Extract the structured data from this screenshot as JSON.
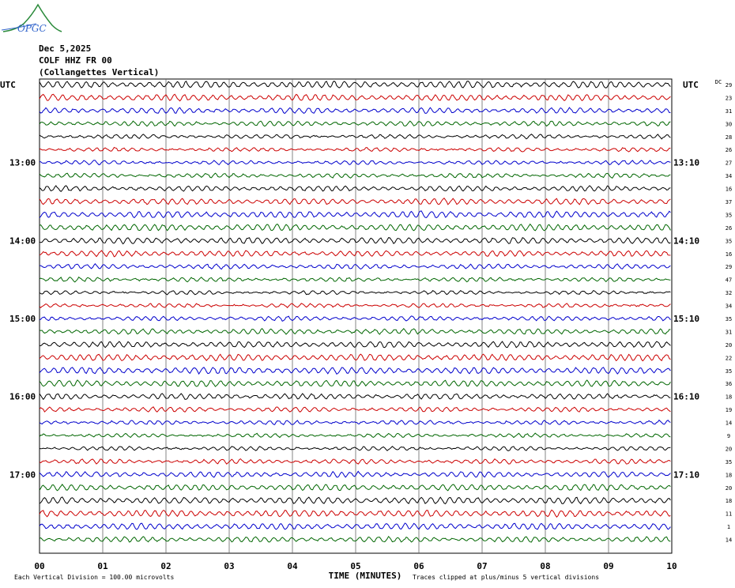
{
  "logo_text": "OPGC",
  "header": {
    "date": "Dec 5,2025",
    "station": "COLF HHZ FR 00",
    "description": "(Collangettes Vertical)"
  },
  "left_axis_label": "UTC",
  "right_axis_label": "UTC",
  "dc_label": "DC",
  "colors": {
    "black": "#000000",
    "red": "#cc0000",
    "blue": "#0000cc",
    "green": "#006600",
    "grid": "#666666"
  },
  "chart_data": {
    "type": "line",
    "title": "Dec 5,2025 COLF HHZ FR 00 (Collangettes Vertical)",
    "xlabel": "TIME (MINUTES)",
    "x_ticks": [
      "00",
      "01",
      "02",
      "03",
      "04",
      "05",
      "06",
      "07",
      "08",
      "09",
      "10"
    ],
    "xlim": [
      0,
      10
    ],
    "left_hour_labels": [
      "13:00",
      "14:00",
      "15:00",
      "16:00",
      "17:00"
    ],
    "right_hour_labels": [
      "13:10",
      "14:10",
      "15:10",
      "16:10",
      "17:10"
    ],
    "trace_count": 36,
    "trace_color_cycle": [
      "black",
      "red",
      "blue",
      "green"
    ],
    "dc_offsets": [
      29,
      23,
      31,
      30,
      28,
      26,
      27,
      34,
      16,
      37,
      35,
      26,
      35,
      16,
      29,
      47,
      32,
      34,
      35,
      31,
      20,
      22,
      35,
      36,
      18,
      19,
      14,
      9,
      20,
      35,
      18,
      20,
      18,
      11,
      1,
      14
    ],
    "vertical_division": "100.00 microvolts",
    "clip_note": "Traces clipped at plus/minus 5 vertical divisions"
  },
  "footer": {
    "division_note": "Each Vertical Division = 100.00 microvolts",
    "clip_note": "Traces clipped at plus/minus 5 vertical divisions"
  }
}
